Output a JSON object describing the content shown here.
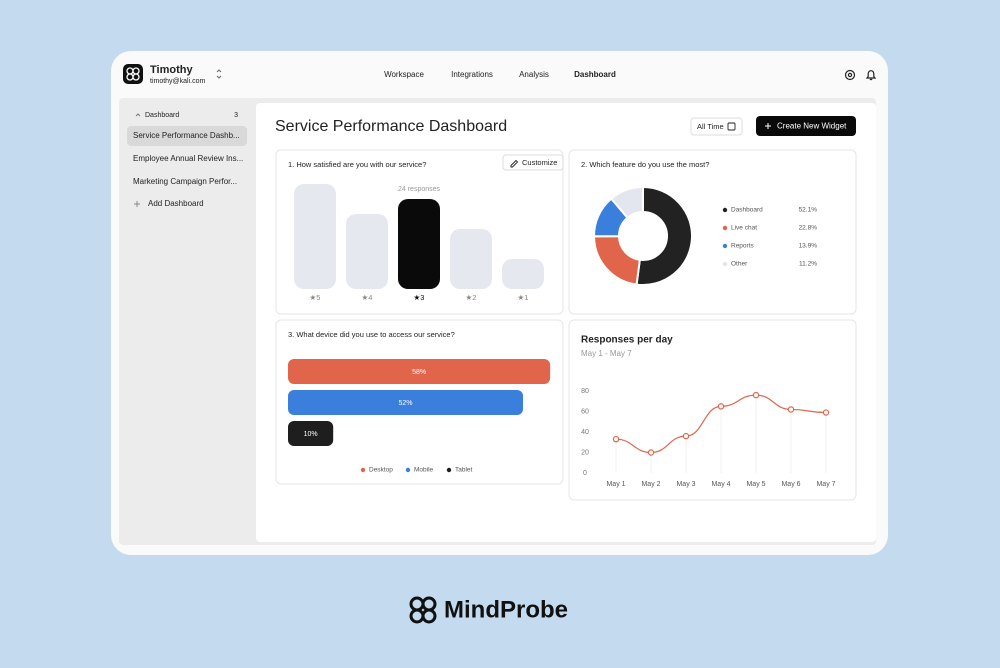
{
  "brand": {
    "name": "MindProbe"
  },
  "user": {
    "name": "Timothy",
    "email": "timothy@kali.com"
  },
  "nav": [
    "Workspace",
    "Integrations",
    "Analysis",
    "Dashboard"
  ],
  "sidebar": {
    "section": "Dashboard",
    "count": 3,
    "items": [
      "Service Performance Dashb...",
      "Employee Annual Review Ins...",
      "Marketing Campaign Perfor..."
    ],
    "add": "Add Dashboard"
  },
  "header": {
    "title": "Service Performance Dashboard",
    "filter": "All Time",
    "button": "Create New Widget"
  },
  "widgets": {
    "satisfaction": {
      "title": "1. How satisfied are you with our service?",
      "action": "Customize",
      "note": "24 responses",
      "categories": [
        "★5",
        "★4",
        "★3",
        "★2",
        "★1"
      ],
      "values": [
        7,
        5,
        6,
        4,
        2
      ],
      "colors": [
        "#e6e8f0",
        "#e6e8f0",
        "#0a0a0a",
        "#e6e8f0",
        "#e6e8f0"
      ]
    },
    "feature": {
      "title": "2. Which feature do you use the most?",
      "labels": [
        "Dashboard",
        "Live chat",
        "Reports",
        "Other"
      ],
      "values": [
        52.1,
        22.8,
        13.9,
        11.2
      ],
      "value_labels": [
        "52.1%",
        "22.8%",
        "13.9%",
        "11.2%"
      ],
      "colors": [
        "#222222",
        "#e0654a",
        "#3a7fdc",
        "#e3e6ee"
      ]
    },
    "device": {
      "title": "3. What device did you use to access our service?",
      "labels": [
        "Desktop",
        "Mobile",
        "Tablet"
      ],
      "values": [
        58,
        52,
        10
      ],
      "value_labels": [
        "58%",
        "52%",
        "10%"
      ],
      "colors": [
        "#e0654a",
        "#3a7fdc",
        "#1e1e1e"
      ]
    },
    "daily": {
      "title": "Responses per day",
      "subtitle": "May 1 - May 7",
      "categories": [
        "May 1",
        "May 2",
        "May 3",
        "May 4",
        "May 5",
        "May 6",
        "May 7"
      ],
      "values": [
        33,
        20,
        36,
        65,
        76,
        62,
        59
      ],
      "ylim": [
        0,
        80
      ],
      "yticks": [
        0,
        20,
        40,
        60,
        80
      ],
      "color": "#e0654a"
    }
  }
}
